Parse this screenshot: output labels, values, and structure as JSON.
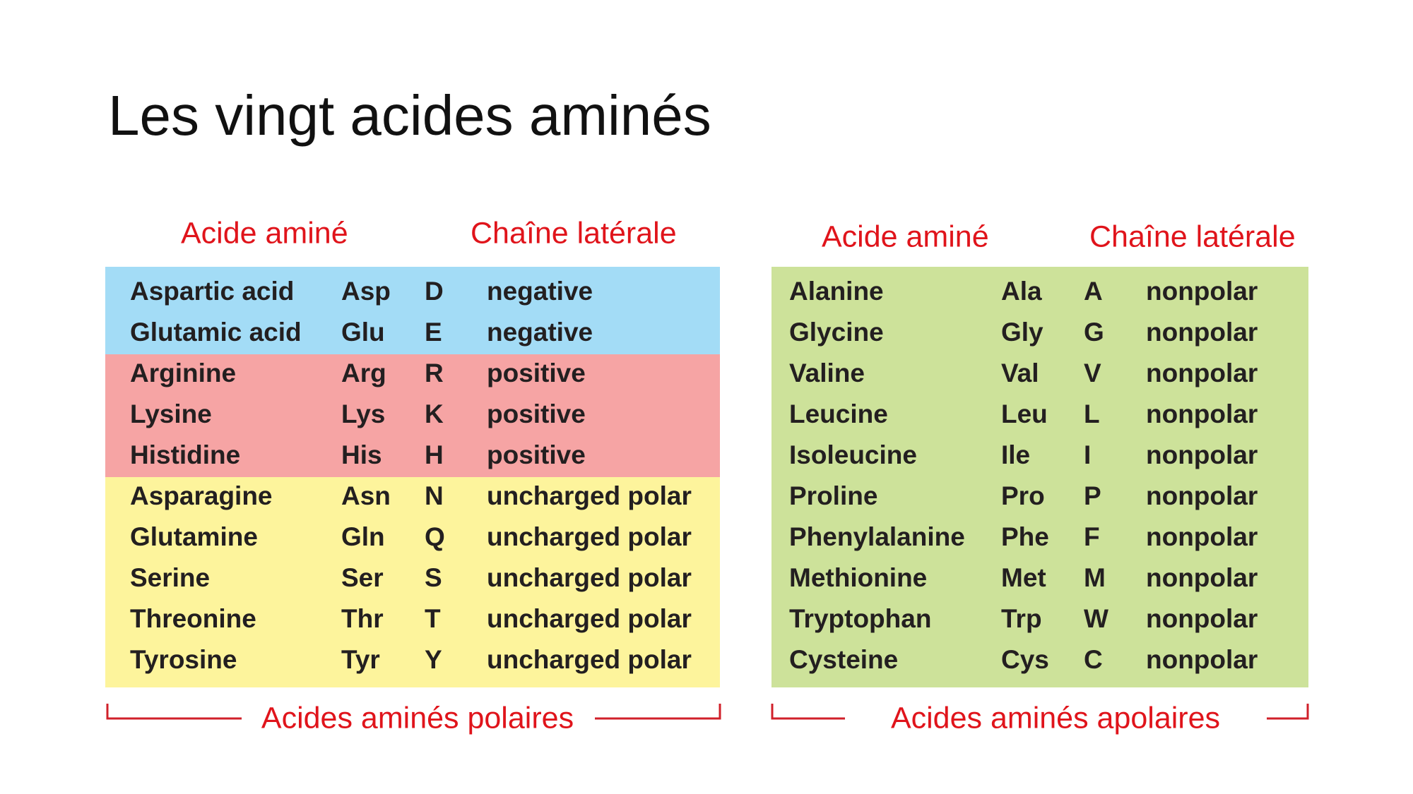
{
  "title": "Les vingt acides aminés",
  "tables": [
    {
      "header": {
        "amino_acid": "Acide aminé",
        "side_chain": "Chaîne latérale"
      },
      "groups": [
        {
          "color": "#a3dcf6",
          "rows": [
            [
              "Aspartic acid",
              "Asp",
              "D",
              "negative"
            ],
            [
              "Glutamic acid",
              "Glu",
              "E",
              "negative"
            ]
          ]
        },
        {
          "color": "#f6a4a4",
          "rows": [
            [
              "Arginine",
              "Arg",
              "R",
              "positive"
            ],
            [
              "Lysine",
              "Lys",
              "K",
              "positive"
            ],
            [
              "Histidine",
              "His",
              "H",
              "positive"
            ]
          ]
        },
        {
          "color": "#fdf49c",
          "rows": [
            [
              "Asparagine",
              "Asn",
              "N",
              "uncharged polar"
            ],
            [
              "Glutamine",
              "Gln",
              "Q",
              "uncharged polar"
            ],
            [
              "Serine",
              "Ser",
              "S",
              "uncharged polar"
            ],
            [
              "Threonine",
              "Thr",
              "T",
              "uncharged polar"
            ],
            [
              "Tyrosine",
              "Tyr",
              "Y",
              "uncharged polar"
            ]
          ]
        }
      ],
      "footer": "Acides aminés polaires"
    },
    {
      "header": {
        "amino_acid": "Acide aminé",
        "side_chain": "Chaîne latérale"
      },
      "groups": [
        {
          "color": "#cde29a",
          "rows": [
            [
              "Alanine",
              "Ala",
              "A",
              "nonpolar"
            ],
            [
              "Glycine",
              "Gly",
              "G",
              "nonpolar"
            ],
            [
              "Valine",
              "Val",
              "V",
              "nonpolar"
            ],
            [
              "Leucine",
              "Leu",
              "L",
              "nonpolar"
            ],
            [
              "Isoleucine",
              "Ile",
              "I",
              "nonpolar"
            ],
            [
              "Proline",
              "Pro",
              "P",
              "nonpolar"
            ],
            [
              "Phenylalanine",
              "Phe",
              "F",
              "nonpolar"
            ],
            [
              "Methionine",
              "Met",
              "M",
              "nonpolar"
            ],
            [
              "Tryptophan",
              "Trp",
              "W",
              "nonpolar"
            ],
            [
              "Cysteine",
              "Cys",
              "C",
              "nonpolar"
            ]
          ]
        }
      ],
      "footer": "Acides aminés apolaires"
    }
  ]
}
